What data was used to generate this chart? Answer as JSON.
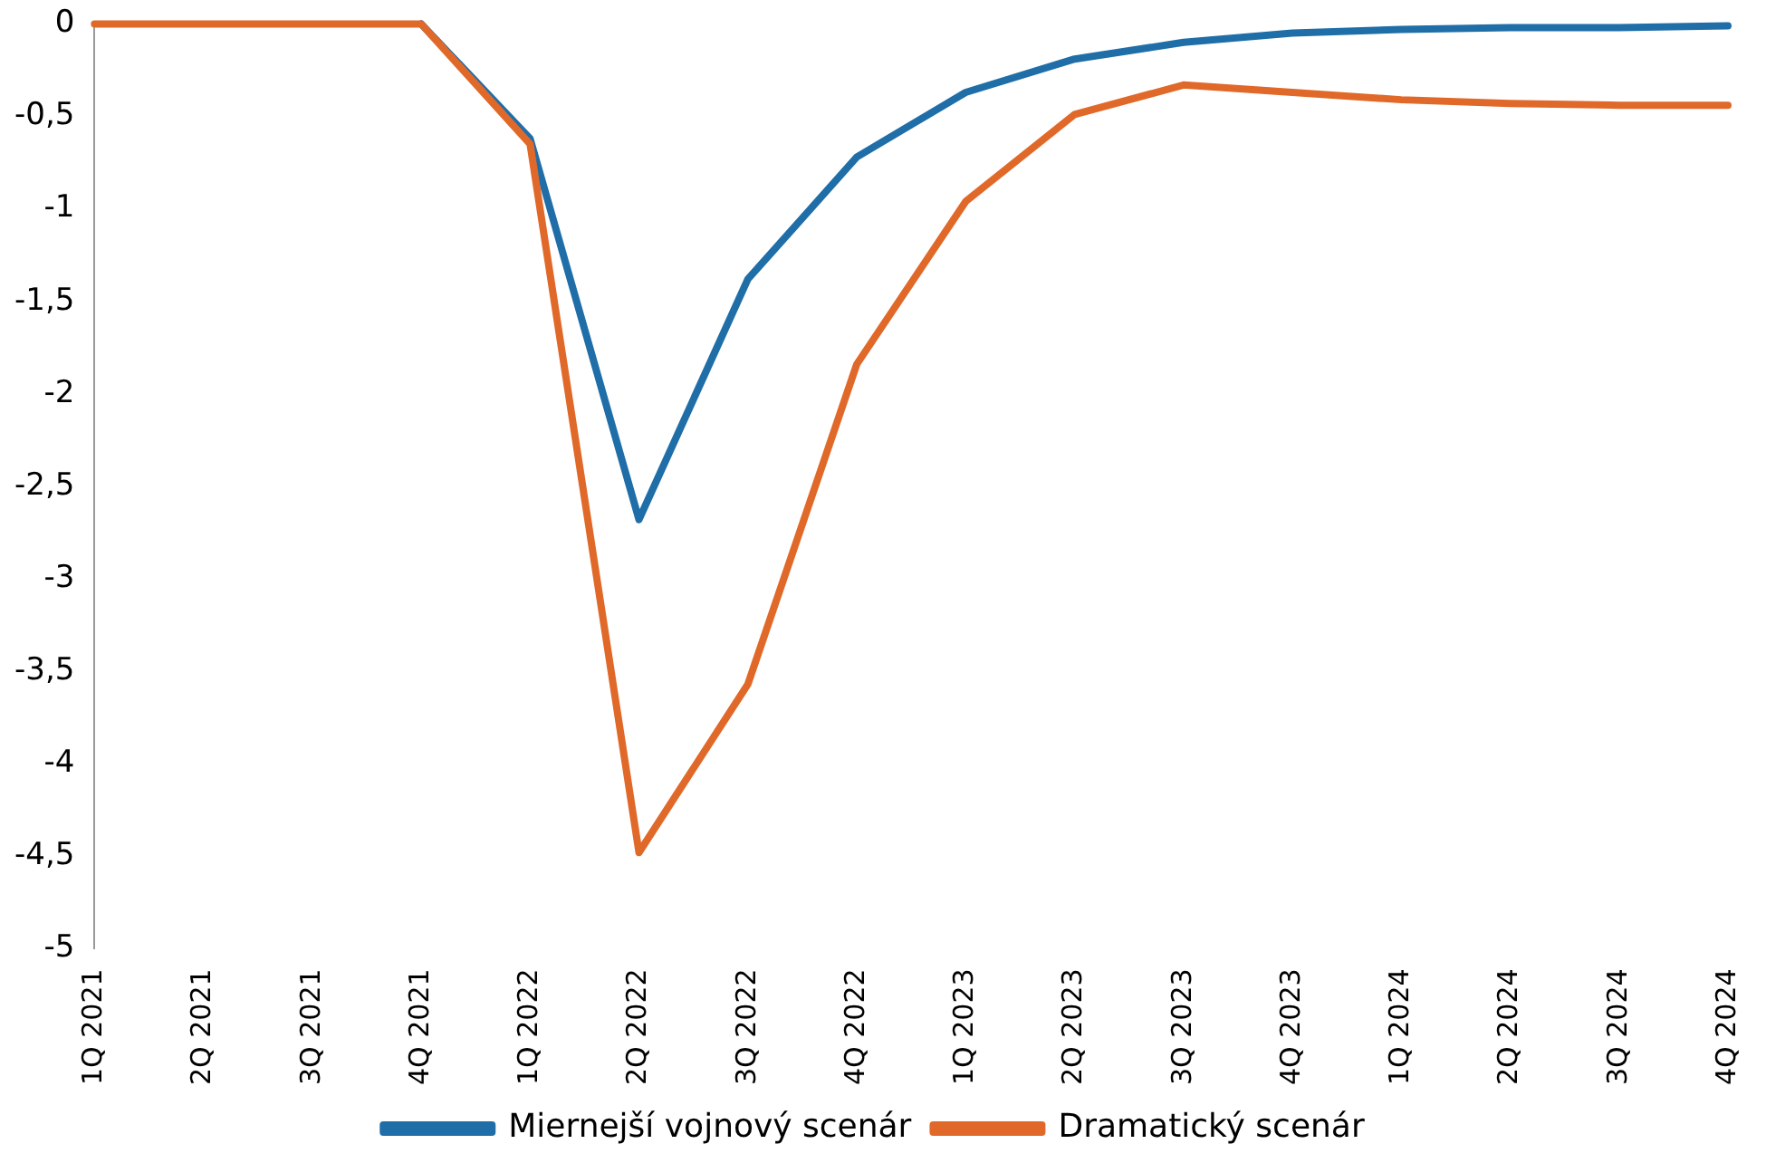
{
  "chart_data": {
    "type": "line",
    "categories": [
      "1Q 2021",
      "2Q 2021",
      "3Q 2021",
      "4Q 2021",
      "1Q 2022",
      "2Q 2022",
      "3Q 2022",
      "4Q 2022",
      "1Q 2023",
      "2Q 2023",
      "3Q 2023",
      "4Q 2023",
      "1Q 2024",
      "2Q 2024",
      "3Q 2024",
      "4Q 2024"
    ],
    "series": [
      {
        "name": "Miernejší vojnový scenár",
        "color": "#1f6ea8",
        "values": [
          null,
          null,
          null,
          0,
          -0.62,
          -2.68,
          -1.38,
          -0.72,
          -0.37,
          -0.19,
          -0.1,
          -0.05,
          -0.03,
          -0.02,
          -0.02,
          -0.01
        ]
      },
      {
        "name": "Dramatický scenár",
        "color": "#e0692a",
        "values": [
          0,
          0,
          0,
          0,
          -0.65,
          -4.48,
          -3.57,
          -1.84,
          -0.96,
          -0.49,
          -0.33,
          -0.37,
          -0.41,
          -0.43,
          -0.44,
          -0.44
        ]
      }
    ],
    "ylim": [
      -5,
      0
    ],
    "yticks": [
      {
        "value": -5,
        "label": "-5"
      },
      {
        "value": -4.5,
        "label": "-4,5"
      },
      {
        "value": -4,
        "label": "-4"
      },
      {
        "value": -3.5,
        "label": "-3,5"
      },
      {
        "value": -3,
        "label": "-3"
      },
      {
        "value": -2.5,
        "label": "-2,5"
      },
      {
        "value": -2,
        "label": "-2"
      },
      {
        "value": -1.5,
        "label": "-1,5"
      },
      {
        "value": -1,
        "label": "-1"
      },
      {
        "value": -0.5,
        "label": "-0,5"
      },
      {
        "value": 0,
        "label": "0"
      }
    ],
    "grid": false,
    "legend": "bottom",
    "marker": "none",
    "line_style": "solid"
  }
}
